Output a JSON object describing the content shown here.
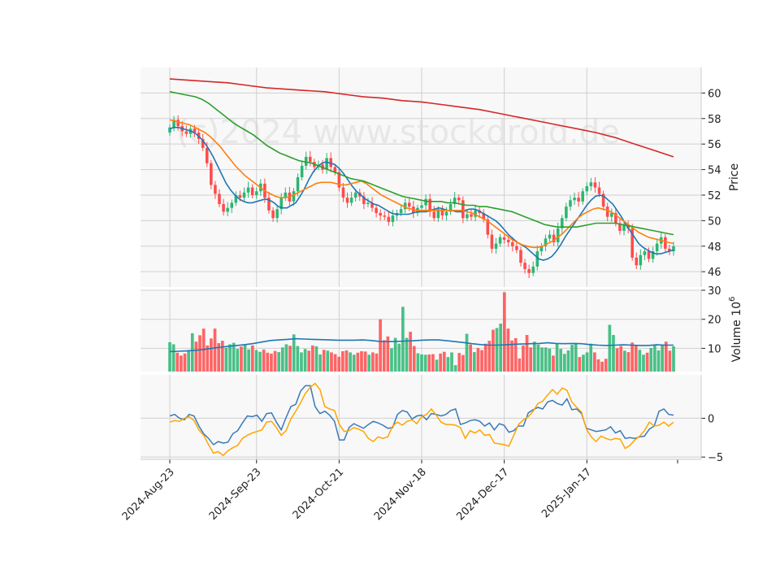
{
  "watermark": "(c)2024 www.stockdroid.de",
  "colors": {
    "up": "#2bb673",
    "down": "#ff4b4b",
    "sma_fast": "#1f77b4",
    "sma_mid": "#ff7f0e",
    "sma_slow": "#2ca02c",
    "sma_long": "#d62728",
    "vol_avg": "#1f77b4",
    "macd": "#3a7ab8",
    "signal": "#ffa500",
    "panel_bg": "#f8f8f8",
    "grid": "#d0d0d0"
  },
  "chart_data": [
    {
      "type": "candlestick",
      "panel": "price",
      "ylabel": "Price",
      "ylim": [
        44.8,
        62
      ],
      "yticks": [
        46,
        48,
        50,
        52,
        54,
        56,
        58,
        60
      ],
      "date_start": "2024-08-23",
      "xtick_labels": [
        "2024-Aug-23",
        "2024-Sep-23",
        "2024-Oct-21",
        "2024-Nov-18",
        "2024-Dec-17",
        "2025-Jan-17"
      ],
      "xtick_index": [
        0,
        21,
        41,
        61,
        81,
        101
      ],
      "closes": [
        57.3,
        57.9,
        57.4,
        57.0,
        56.8,
        57.2,
        56.9,
        56.4,
        55.7,
        54.5,
        52.8,
        52.1,
        51.3,
        50.7,
        51.0,
        51.4,
        52.0,
        51.8,
        52.2,
        52.6,
        52.0,
        52.3,
        52.9,
        51.8,
        50.8,
        50.2,
        50.9,
        51.8,
        52.2,
        51.5,
        52.3,
        53.4,
        54.3,
        55.0,
        54.6,
        54.2,
        54.4,
        54.0,
        54.9,
        54.2,
        53.8,
        52.6,
        51.8,
        51.4,
        51.8,
        52.2,
        51.9,
        51.3,
        51.4,
        51.0,
        50.6,
        50.4,
        50.3,
        49.9,
        50.4,
        50.6,
        50.9,
        51.4,
        51.1,
        50.6,
        51.0,
        51.2,
        51.7,
        50.7,
        50.2,
        50.9,
        50.4,
        50.7,
        51.3,
        51.8,
        51.6,
        50.2,
        50.5,
        50.3,
        50.8,
        50.6,
        50.1,
        48.9,
        47.8,
        48.2,
        48.7,
        48.5,
        48.3,
        48.0,
        47.7,
        46.7,
        46.2,
        45.9,
        46.4,
        47.6,
        48.0,
        48.6,
        48.9,
        48.3,
        49.4,
        50.2,
        51.1,
        51.6,
        51.8,
        51.5,
        52.3,
        52.7,
        53.0,
        52.6,
        52.1,
        51.1,
        50.3,
        50.6,
        49.8,
        49.2,
        49.7,
        49.4,
        47.1,
        46.5,
        47.3,
        47.6,
        47.0,
        47.6,
        48.2,
        48.7,
        47.8,
        47.6,
        48.0
      ],
      "series": [
        {
          "name": "SMA 10",
          "values": [
            57.2,
            57.3,
            57.3,
            57.2,
            57.1,
            57.0,
            56.8,
            56.5,
            56.1,
            55.6,
            55.0,
            54.3,
            53.6,
            52.9,
            52.4,
            52.0,
            51.7,
            51.5,
            51.4,
            51.4,
            51.5,
            51.6,
            51.7,
            51.6,
            51.4,
            51.1,
            51.0,
            51.0,
            51.2,
            51.4,
            51.9,
            52.5,
            53.2,
            53.8,
            54.2,
            54.5,
            54.6,
            54.5,
            54.4,
            54.1,
            53.7,
            53.2,
            52.7,
            52.3,
            52.0,
            51.7,
            51.5,
            51.3,
            51.2,
            51.0,
            50.8,
            50.6,
            50.5,
            50.5,
            50.5,
            50.5,
            50.6,
            50.7,
            50.7,
            50.7,
            50.8,
            50.9,
            51.0,
            50.9,
            50.8,
            50.8,
            50.7,
            50.7,
            50.8,
            50.9,
            50.9,
            50.8,
            50.6,
            50.4,
            50.2,
            50.0,
            49.7,
            49.3,
            48.9,
            48.6,
            48.3,
            48.1,
            47.9,
            47.6,
            47.3,
            47.0,
            46.9,
            47.0,
            47.2,
            47.6,
            48.1,
            48.7,
            49.2,
            49.7,
            50.2,
            50.7,
            51.2,
            51.6,
            51.9,
            52.0,
            51.9,
            51.6,
            51.3,
            50.8,
            50.3,
            49.7,
            49.2,
            48.7,
            48.2,
            47.9,
            47.7,
            47.5,
            47.4,
            47.4,
            47.5,
            47.6,
            47.7
          ]
        },
        {
          "name": "SMA 20",
          "values": [
            57.9,
            57.8,
            57.7,
            57.6,
            57.5,
            57.3,
            57.1,
            56.9,
            56.6,
            56.2,
            55.8,
            55.3,
            54.8,
            54.3,
            53.9,
            53.5,
            53.2,
            52.9,
            52.6,
            52.3,
            52.1,
            51.9,
            51.8,
            51.8,
            51.9,
            52.1,
            52.3,
            52.5,
            52.7,
            52.9,
            53.0,
            53.0,
            53.0,
            52.9,
            52.8,
            52.8,
            52.9,
            53.0,
            53.1,
            52.9,
            52.6,
            52.3,
            52.0,
            51.8,
            51.6,
            51.4,
            51.2,
            51.0,
            50.9,
            50.8,
            50.8,
            50.8,
            50.8,
            50.8,
            50.8,
            50.8,
            50.8,
            50.8,
            50.8,
            50.7,
            50.6,
            50.4,
            50.2,
            50.0,
            49.7,
            49.4,
            49.1,
            48.8,
            48.5,
            48.3,
            48.1,
            48.0,
            47.9,
            47.9,
            48.0,
            48.2,
            48.4,
            48.7,
            49.0,
            49.4,
            49.8,
            50.2,
            50.5,
            50.7,
            50.9,
            51.0,
            50.9,
            50.8,
            50.6,
            50.3,
            50.0,
            49.7,
            49.4,
            49.1,
            48.9,
            48.7,
            48.6,
            48.5,
            48.4,
            48.3,
            48.2
          ]
        },
        {
          "name": "SMA 50",
          "values": [
            60.1,
            60.0,
            59.9,
            59.8,
            59.7,
            59.5,
            59.2,
            58.8,
            58.4,
            58.0,
            57.6,
            57.3,
            57.0,
            56.7,
            56.3,
            55.9,
            55.6,
            55.3,
            55.1,
            54.9,
            54.7,
            54.6,
            54.5,
            54.3,
            54.1,
            53.9,
            53.7,
            53.5,
            53.3,
            53.2,
            53.1,
            52.9,
            52.7,
            52.5,
            52.3,
            52.1,
            51.9,
            51.8,
            51.7,
            51.6,
            51.5,
            51.5,
            51.5,
            51.4,
            51.4,
            51.3,
            51.2,
            51.2,
            51.1,
            51.1,
            51.0,
            50.9,
            50.8,
            50.7,
            50.5,
            50.3,
            50.1,
            49.9,
            49.7,
            49.6,
            49.5,
            49.5,
            49.5,
            49.5,
            49.6,
            49.7,
            49.8,
            49.8,
            49.8,
            49.8,
            49.7,
            49.6,
            49.5,
            49.4,
            49.3,
            49.2,
            49.1,
            49.0,
            48.9
          ]
        },
        {
          "name": "SMA 200",
          "values": [
            61.1,
            61.0,
            60.9,
            60.8,
            60.6,
            60.4,
            60.3,
            60.2,
            60.1,
            59.9,
            59.7,
            59.6,
            59.4,
            59.3,
            59.1,
            58.9,
            58.7,
            58.4,
            58.1,
            57.8,
            57.5,
            57.2,
            56.9,
            56.5,
            56.0,
            55.5,
            55.0
          ]
        }
      ]
    },
    {
      "type": "bar",
      "panel": "volume",
      "ylabel": "Volume  10",
      "ylabel_exp": "6",
      "ylim": [
        2,
        30
      ],
      "yticks": [
        10,
        20,
        30
      ],
      "values": [
        12.1,
        11.4,
        8.5,
        7.5,
        8.2,
        9.4,
        15.2,
        12.3,
        14.5,
        16.8,
        11.0,
        13.4,
        16.8,
        11.8,
        12.6,
        10.2,
        11.4,
        11.9,
        9.8,
        10.6,
        11.2,
        9.6,
        11.0,
        9.4,
        8.8,
        9.6,
        8.5,
        8.2,
        9.1,
        8.7,
        10.3,
        11.4,
        10.9,
        14.8,
        10.8,
        8.6,
        9.8,
        9.2,
        11.0,
        10.7,
        7.9,
        9.5,
        9.2,
        8.6,
        8.0,
        7.1,
        9.0,
        9.3,
        8.6,
        7.8,
        8.5,
        9.0,
        8.9,
        7.8,
        8.6,
        8.2,
        20.0,
        12.8,
        14.1,
        10.0,
        13.6,
        11.6,
        24.3,
        13.6,
        15.7,
        10.8,
        8.3,
        7.9,
        7.8,
        7.9,
        8.0,
        6.1,
        8.2,
        8.8,
        7.0,
        8.6,
        4.2,
        8.4,
        7.7,
        15.0,
        11.3,
        8.7,
        10.1,
        9.4,
        11.6,
        12.6,
        16.4,
        17.0,
        18.5,
        29.3,
        16.8,
        12.7,
        13.5,
        6.5,
        11.0,
        14.6,
        10.3,
        12.3,
        11.3,
        10.3,
        10.3,
        9.9,
        7.5,
        11.6,
        9.8,
        8.1,
        9.3,
        11.2,
        11.6,
        7.0,
        7.8,
        8.6,
        11.6,
        8.6,
        6.2,
        5.4,
        6.4,
        18.1,
        14.6,
        10.0,
        10.8,
        9.2,
        8.7,
        12.0,
        10.9,
        9.5,
        7.8,
        8.5,
        10.1,
        11.3,
        9.3,
        11.0,
        12.3,
        9.2,
        10.7
      ],
      "series": [
        {
          "name": "Volume MA",
          "values": [
            8.9,
            9.0,
            9.1,
            9.3,
            9.6,
            10.0,
            10.4,
            10.7,
            11.0,
            11.3,
            11.7,
            12.2,
            12.7,
            12.9,
            13.1,
            13.3,
            13.2,
            13.1,
            13.0,
            12.9,
            12.8,
            12.8,
            12.8,
            12.9,
            12.7,
            12.4,
            12.3,
            12.4,
            12.5,
            12.6,
            12.8,
            12.9,
            12.9,
            12.6,
            12.3,
            12.0,
            11.6,
            11.3,
            11.1,
            11.1,
            11.2,
            11.4,
            11.5,
            11.6,
            11.7,
            11.9,
            11.7,
            11.6,
            11.7,
            11.6,
            11.3,
            11.1,
            11.0,
            11.1,
            11.2,
            11.1,
            11.0,
            11.0,
            11.2,
            11.1,
            11.1
          ]
        }
      ]
    },
    {
      "type": "line",
      "panel": "oscillator",
      "ylim": [
        -5.3,
        5.6
      ],
      "yticks": [
        -5,
        0
      ],
      "series": [
        {
          "name": "MACD",
          "values": [
            0.3,
            0.5,
            0.0,
            -0.2,
            0.5,
            0.3,
            -1.0,
            -2.0,
            -2.6,
            -3.4,
            -3.0,
            -3.2,
            -3.1,
            -2.0,
            -1.6,
            -0.6,
            0.3,
            0.2,
            0.4,
            -0.4,
            0.6,
            0.7,
            -0.5,
            -1.5,
            0.1,
            1.5,
            1.8,
            3.5,
            4.2,
            4.2,
            1.5,
            0.6,
            0.9,
            0.4,
            -0.4,
            -2.8,
            -2.8,
            -1.2,
            -0.7,
            -1.0,
            -1.3,
            -0.8,
            -0.4,
            -0.6,
            -0.9,
            -1.3,
            -1.2,
            0.5,
            1.0,
            0.8,
            -0.1,
            0.3,
            0.4,
            -0.2,
            0.6,
            0.5,
            0.3,
            0.5,
            1.0,
            1.2,
            -0.8,
            -0.6,
            -0.3,
            -0.2,
            -0.4,
            -1.0,
            -0.6,
            -1.5,
            -0.7,
            -0.9,
            -1.8,
            -1.6,
            -1.0,
            -1.0,
            0.7,
            1.1,
            1.4,
            1.2,
            2.1,
            2.3,
            1.9,
            1.7,
            2.5,
            1.1,
            1.2,
            0.6,
            -1.3,
            -1.5,
            -1.7,
            -1.6,
            -1.5,
            -1.1,
            -1.9,
            -1.6,
            -2.6,
            -2.5,
            -2.6,
            -2.4,
            -2.3,
            -1.4,
            -1.0,
            0.9,
            1.2,
            0.5,
            0.4
          ]
        },
        {
          "name": "Signal",
          "values": [
            -0.5,
            -0.3,
            -0.4,
            0.0,
            0.2,
            -0.3,
            -1.5,
            -2.2,
            -3.4,
            -4.5,
            -4.3,
            -4.8,
            -4.2,
            -3.8,
            -3.5,
            -2.6,
            -2.2,
            -1.9,
            -1.7,
            -1.5,
            -0.5,
            -0.4,
            -1.2,
            -2.2,
            -1.6,
            -0.1,
            0.9,
            2.0,
            3.2,
            4.0,
            4.5,
            3.7,
            1.5,
            1.2,
            1.0,
            -0.8,
            -1.7,
            -1.6,
            -1.2,
            -1.4,
            -1.7,
            -2.6,
            -3.0,
            -2.4,
            -2.6,
            -2.4,
            -1.0,
            -0.5,
            -0.9,
            -0.4,
            -0.2,
            -0.7,
            0.2,
            0.5,
            1.2,
            0.4,
            -0.5,
            -0.8,
            -0.8,
            -0.9,
            -1.2,
            -2.6,
            -1.6,
            -1.9,
            -1.5,
            -2.2,
            -2.1,
            -3.2,
            -3.3,
            -3.4,
            -3.6,
            -2.2,
            -0.8,
            -0.2,
            0.2,
            0.9,
            1.9,
            2.2,
            3.0,
            3.7,
            3.1,
            3.9,
            3.6,
            2.1,
            1.4,
            0.8,
            -1.4,
            -2.4,
            -3.0,
            -2.3,
            -2.6,
            -2.8,
            -2.6,
            -2.7,
            -3.9,
            -3.5,
            -2.8,
            -2.3,
            -1.6,
            -0.5,
            -1.0,
            -0.9,
            -0.5,
            -1.0,
            -0.5
          ]
        }
      ]
    }
  ]
}
